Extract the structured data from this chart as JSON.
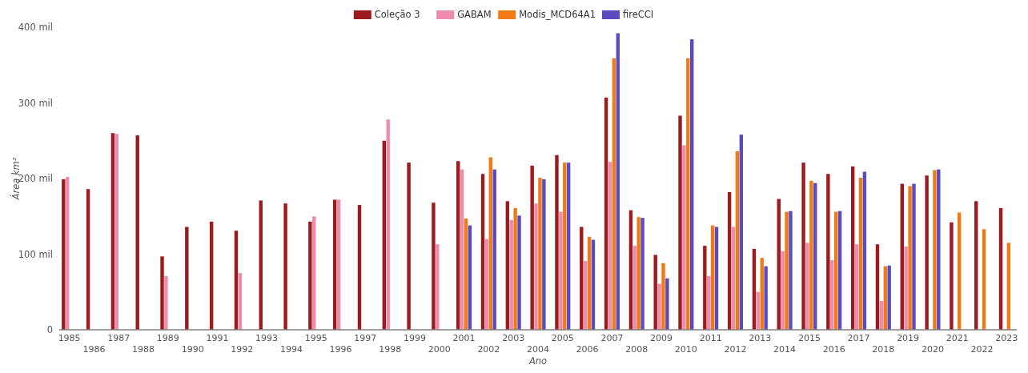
{
  "chart_data": {
    "type": "bar",
    "xlabel": "Ano",
    "ylabel": "Área km²",
    "legend": "top",
    "categories": [
      "1985",
      "1986",
      "1987",
      "1988",
      "1989",
      "1990",
      "1991",
      "1992",
      "1993",
      "1994",
      "1995",
      "1996",
      "1997",
      "1998",
      "1999",
      "2000",
      "2001",
      "2002",
      "2003",
      "2004",
      "2005",
      "2006",
      "2007",
      "2008",
      "2009",
      "2010",
      "2011",
      "2012",
      "2013",
      "2014",
      "2015",
      "2016",
      "2017",
      "2018",
      "2019",
      "2020",
      "2021",
      "2022",
      "2023"
    ],
    "ylim": [
      0,
      400
    ],
    "yticks": [
      0,
      {
        "value": 100,
        "label": "100 mil"
      },
      {
        "value": 200,
        "label": "200 mil"
      },
      {
        "value": 300,
        "label": "300 mil"
      },
      {
        "value": 400,
        "label": "400 mil"
      }
    ],
    "series": [
      {
        "name": "Coleção 3",
        "color": "#9b1b1f",
        "values": [
          199,
          186,
          260,
          257,
          97,
          136,
          143,
          131,
          171,
          167,
          143,
          172,
          165,
          250,
          221,
          168,
          223,
          206,
          170,
          217,
          231,
          136,
          307,
          158,
          99,
          283,
          111,
          182,
          107,
          173,
          221,
          206,
          216,
          113,
          193,
          204,
          142,
          170,
          161
        ]
      },
      {
        "name": "GABAM",
        "color": "#f08bb0",
        "values": [
          202,
          null,
          259,
          null,
          71,
          null,
          null,
          75,
          null,
          null,
          150,
          172,
          null,
          278,
          null,
          113,
          212,
          120,
          145,
          167,
          156,
          91,
          222,
          111,
          61,
          244,
          71,
          136,
          50,
          104,
          115,
          92,
          113,
          38,
          110,
          null,
          null,
          null,
          null
        ]
      },
      {
        "name": "Modis_MCD64A1",
        "color": "#f07b16",
        "values": [
          null,
          null,
          null,
          null,
          null,
          null,
          null,
          null,
          null,
          null,
          null,
          null,
          null,
          null,
          null,
          null,
          147,
          228,
          161,
          201,
          221,
          123,
          359,
          149,
          88,
          359,
          138,
          236,
          95,
          156,
          197,
          156,
          201,
          84,
          190,
          211,
          155,
          133,
          115
        ]
      },
      {
        "name": "fireCCI",
        "color": "#5b4bc0",
        "values": [
          null,
          null,
          null,
          null,
          null,
          null,
          null,
          null,
          null,
          null,
          null,
          null,
          null,
          null,
          null,
          null,
          138,
          212,
          151,
          199,
          221,
          119,
          392,
          148,
          68,
          384,
          136,
          258,
          84,
          157,
          194,
          157,
          209,
          85,
          193,
          212,
          null,
          null,
          null
        ]
      }
    ]
  }
}
